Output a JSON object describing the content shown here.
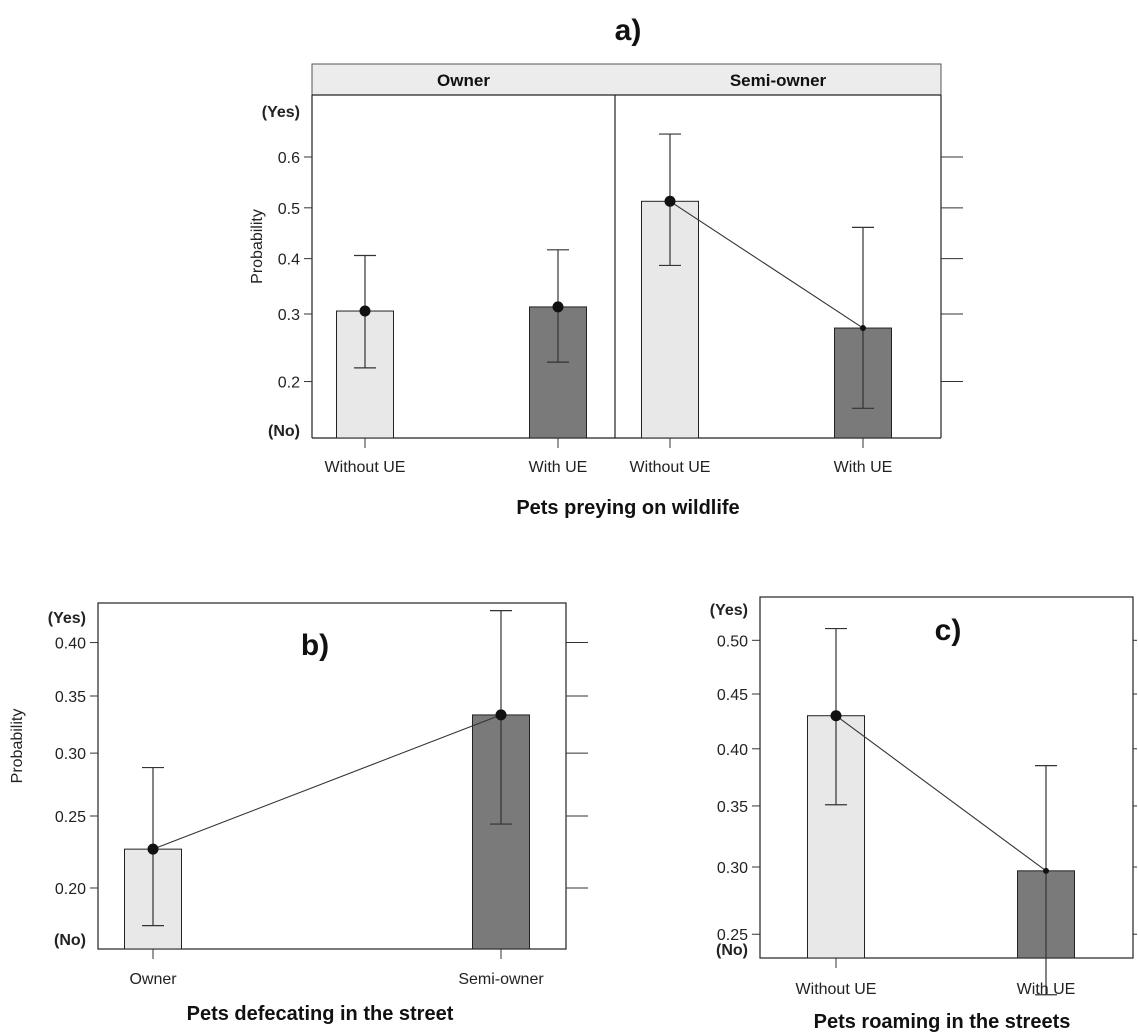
{
  "chart_data": [
    {
      "panel": "a)",
      "type": "bar",
      "xlabel": "Pets preying on wildlife",
      "ylabel": "Probability",
      "y_top_label": "(Yes)",
      "y_bottom_label": "(No)",
      "yticks": [
        "0.2",
        "0.3",
        "0.4",
        "0.5",
        "0.6"
      ],
      "facets": [
        {
          "name": "Owner",
          "categories": [
            "Without UE",
            "With UE"
          ],
          "values": [
            0.305,
            0.312
          ],
          "ci_low": [
            0.218,
            0.226
          ],
          "ci_high": [
            0.406,
            0.417
          ],
          "colors": [
            "#e8e8e8",
            "#7a7a7a"
          ],
          "connect": false
        },
        {
          "name": "Semi-owner",
          "categories": [
            "Without UE",
            "With UE"
          ],
          "values": [
            0.513,
            0.277
          ],
          "ci_low": [
            0.387,
            0.168
          ],
          "ci_high": [
            0.643,
            0.461
          ],
          "colors": [
            "#e8e8e8",
            "#7a7a7a"
          ],
          "connect": true
        }
      ]
    },
    {
      "panel": "b)",
      "type": "bar",
      "xlabel": "Pets defecating in the street",
      "ylabel": "Probability",
      "y_top_label": "(Yes)",
      "y_bottom_label": "(No)",
      "yticks": [
        "0.20",
        "0.25",
        "0.30",
        "0.35",
        "0.40"
      ],
      "categories": [
        "Owner",
        "Semi-owner"
      ],
      "values": [
        0.226,
        0.333
      ],
      "ci_low": [
        0.177,
        0.244
      ],
      "ci_high": [
        0.288,
        0.431
      ],
      "colors": [
        "#e8e8e8",
        "#7a7a7a"
      ],
      "connect": true
    },
    {
      "panel": "c)",
      "type": "bar",
      "xlabel": "Pets roaming in the streets",
      "ylabel": "",
      "y_top_label": "(Yes)",
      "y_bottom_label": "(No)",
      "yticks": [
        "0.25",
        "0.30",
        "0.35",
        "0.40",
        "0.45",
        "0.50"
      ],
      "categories": [
        "Without UE",
        "With UE"
      ],
      "values": [
        0.43,
        0.297
      ],
      "ci_low": [
        0.351,
        0.21
      ],
      "ci_high": [
        0.511,
        0.385
      ],
      "colors": [
        "#e8e8e8",
        "#7a7a7a"
      ],
      "connect": true
    }
  ]
}
